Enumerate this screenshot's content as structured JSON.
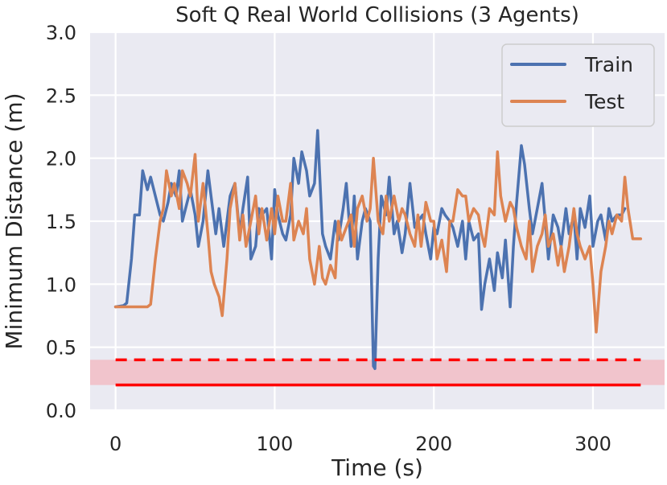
{
  "chart_data": {
    "type": "line",
    "title": "Soft Q Real World Collisions (3 Agents)",
    "xlabel": "Time (s)",
    "ylabel": "Minimum Distance (m)",
    "xlim": [
      -16,
      345
    ],
    "ylim": [
      0,
      3.0
    ],
    "xticks": [
      0,
      100,
      200,
      300
    ],
    "xtick_labels": [
      "0",
      "100",
      "200",
      "300"
    ],
    "yticks": [
      0.0,
      0.5,
      1.0,
      1.5,
      2.0,
      2.5,
      3.0
    ],
    "ytick_labels": [
      "0.0",
      "0.5",
      "1.0",
      "1.5",
      "2.0",
      "2.5",
      "3.0"
    ],
    "grid": true,
    "legend": {
      "position": "top-right",
      "entries": [
        "Train",
        "Test"
      ]
    },
    "colors": {
      "train": "#4c72b0",
      "test": "#dd8452",
      "threshold": "#ff0000",
      "band": "#f1c4cc",
      "plot_bg": "#eaeaf2",
      "grid": "#ffffff"
    },
    "series": [
      {
        "name": "Train",
        "x": [
          0,
          5,
          7,
          10,
          12,
          15,
          17,
          20,
          22,
          25,
          28,
          30,
          33,
          35,
          38,
          40,
          42,
          45,
          47,
          50,
          52,
          55,
          58,
          60,
          63,
          65,
          68,
          70,
          72,
          75,
          78,
          80,
          83,
          85,
          88,
          90,
          92,
          95,
          98,
          100,
          102,
          105,
          107,
          110,
          112,
          115,
          117,
          120,
          122,
          125,
          127,
          130,
          132,
          135,
          138,
          140,
          143,
          145,
          148,
          150,
          152,
          155,
          157,
          160,
          162,
          163,
          165,
          167,
          170,
          172,
          175,
          177,
          180,
          182,
          185,
          188,
          190,
          193,
          195,
          198,
          200,
          202,
          205,
          207,
          210,
          212,
          215,
          218,
          220,
          222,
          225,
          228,
          230,
          232,
          235,
          238,
          240,
          243,
          245,
          248,
          250,
          252,
          255,
          257,
          260,
          262,
          265,
          268,
          270,
          272,
          275,
          278,
          280,
          283,
          285,
          288,
          290,
          292,
          295,
          298,
          300,
          303,
          305,
          308,
          310,
          312,
          315,
          318,
          320
        ],
        "y": [
          0.82,
          0.83,
          0.85,
          1.2,
          1.55,
          1.55,
          1.9,
          1.75,
          1.85,
          1.7,
          1.55,
          1.5,
          1.65,
          1.8,
          1.7,
          1.9,
          1.5,
          1.65,
          1.75,
          1.55,
          1.3,
          1.5,
          1.9,
          1.7,
          1.4,
          1.6,
          1.3,
          1.5,
          1.7,
          1.8,
          1.4,
          1.6,
          1.85,
          1.2,
          1.3,
          1.6,
          1.55,
          1.6,
          1.2,
          1.75,
          1.55,
          1.4,
          1.35,
          1.55,
          2.0,
          1.8,
          2.05,
          1.9,
          1.7,
          1.8,
          2.22,
          1.4,
          1.3,
          1.2,
          1.5,
          1.35,
          1.6,
          1.8,
          1.3,
          1.7,
          1.2,
          1.5,
          1.6,
          1.5,
          0.35,
          0.33,
          1.2,
          1.7,
          1.55,
          1.85,
          1.4,
          1.5,
          1.25,
          1.4,
          1.8,
          1.45,
          1.5,
          1.55,
          1.4,
          1.2,
          1.45,
          1.4,
          1.6,
          1.55,
          1.5,
          1.45,
          1.3,
          1.5,
          1.2,
          1.5,
          1.35,
          1.4,
          0.8,
          1.0,
          1.2,
          0.95,
          1.25,
          1.05,
          1.35,
          0.82,
          1.3,
          1.65,
          2.1,
          1.95,
          1.6,
          1.4,
          1.6,
          1.8,
          1.5,
          1.2,
          1.55,
          1.45,
          1.3,
          1.6,
          1.4,
          1.55,
          1.2,
          1.6,
          1.45,
          1.7,
          1.3,
          1.5,
          1.55,
          1.35,
          1.6,
          1.5,
          1.55,
          1.55,
          1.6
        ],
        "color": "#4c72b0"
      },
      {
        "name": "Test",
        "x": [
          0,
          5,
          10,
          15,
          20,
          22,
          25,
          28,
          30,
          32,
          35,
          37,
          40,
          42,
          45,
          47,
          50,
          52,
          55,
          58,
          60,
          62,
          65,
          67,
          70,
          72,
          75,
          78,
          80,
          82,
          85,
          88,
          90,
          92,
          95,
          98,
          100,
          102,
          105,
          107,
          110,
          112,
          115,
          118,
          120,
          122,
          125,
          128,
          130,
          132,
          135,
          138,
          140,
          142,
          145,
          148,
          150,
          152,
          155,
          158,
          160,
          162,
          165,
          168,
          170,
          172,
          175,
          178,
          180,
          182,
          185,
          188,
          190,
          192,
          195,
          198,
          200,
          202,
          205,
          208,
          210,
          212,
          215,
          218,
          220,
          222,
          225,
          228,
          230,
          232,
          235,
          238,
          240,
          242,
          245,
          248,
          250,
          252,
          255,
          258,
          260,
          262,
          265,
          268,
          270,
          272,
          275,
          278,
          280,
          282,
          285,
          288,
          290,
          292,
          295,
          298,
          300,
          302,
          305,
          308,
          310,
          312,
          315,
          318,
          320,
          322,
          325,
          328,
          330
        ],
        "y": [
          0.82,
          0.82,
          0.82,
          0.82,
          0.82,
          0.84,
          1.2,
          1.5,
          1.6,
          1.9,
          1.7,
          1.8,
          1.6,
          1.9,
          1.8,
          1.7,
          2.03,
          1.5,
          1.8,
          1.4,
          1.1,
          1.0,
          0.9,
          0.75,
          1.2,
          1.6,
          1.8,
          1.35,
          1.55,
          1.3,
          1.5,
          1.7,
          1.4,
          1.6,
          1.35,
          1.6,
          1.4,
          1.7,
          1.5,
          1.5,
          1.8,
          1.35,
          1.5,
          1.4,
          1.6,
          1.2,
          1.0,
          1.3,
          1.05,
          1.0,
          1.15,
          1.05,
          1.5,
          1.35,
          1.45,
          1.55,
          1.3,
          1.6,
          1.7,
          1.5,
          1.6,
          2.0,
          1.5,
          1.4,
          1.7,
          1.5,
          1.7,
          1.5,
          1.6,
          1.55,
          1.4,
          1.3,
          1.55,
          1.3,
          1.65,
          1.5,
          1.5,
          1.2,
          1.35,
          1.1,
          1.5,
          1.5,
          1.75,
          1.7,
          1.7,
          1.5,
          1.6,
          1.55,
          1.4,
          1.3,
          1.6,
          1.55,
          2.05,
          1.7,
          1.5,
          1.65,
          1.6,
          1.45,
          1.3,
          1.2,
          1.5,
          1.1,
          1.3,
          1.4,
          1.55,
          1.3,
          1.4,
          1.15,
          1.3,
          1.1,
          1.3,
          1.6,
          1.4,
          1.3,
          1.2,
          1.3,
          1.0,
          0.62,
          1.1,
          1.3,
          1.5,
          1.4,
          1.55,
          1.5,
          1.85,
          1.6,
          1.36,
          1.36,
          1.36
        ],
        "color": "#dd8452"
      }
    ],
    "reference_lines": [
      {
        "y": 0.4,
        "style": "dashed",
        "x_range": [
          0,
          330
        ],
        "color": "#ff0000"
      },
      {
        "y": 0.2,
        "style": "solid",
        "x_range": [
          0,
          330
        ],
        "color": "#ff0000"
      }
    ],
    "shaded_band": {
      "y_range": [
        0.2,
        0.4
      ],
      "color": "#f1c4cc"
    }
  }
}
